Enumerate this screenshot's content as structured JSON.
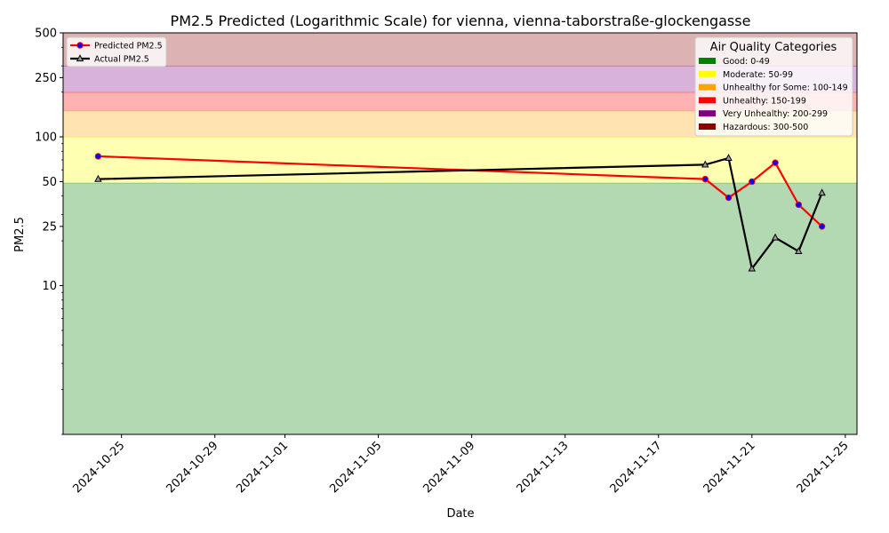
{
  "chart_data": {
    "type": "line",
    "title": "PM2.5 Predicted (Logarithmic Scale) for vienna, vienna-taborstraße-glockengasse",
    "xlabel": "Date",
    "ylabel": "PM2.5",
    "y_scale": "log",
    "ylim": [
      1,
      500
    ],
    "xlim": [
      "2024-10-22T12:00",
      "2024-11-25T12:00"
    ],
    "x_ticks": [
      "2024-10-25",
      "2024-10-29",
      "2024-11-01",
      "2024-11-05",
      "2024-11-09",
      "2024-11-13",
      "2024-11-17",
      "2024-11-21",
      "2024-11-25"
    ],
    "y_ticks": [
      10,
      25,
      50,
      100,
      250,
      500
    ],
    "grid": false,
    "series": [
      {
        "name": "Predicted PM2.5",
        "color": "#ff0000",
        "marker_color": "#0000ff",
        "marker": "circle",
        "x": [
          "2024-10-24",
          "2024-11-19",
          "2024-11-20",
          "2024-11-21",
          "2024-11-22",
          "2024-11-23",
          "2024-11-24"
        ],
        "values": [
          74,
          52,
          39,
          50,
          67,
          35,
          25
        ]
      },
      {
        "name": "Actual PM2.5",
        "color": "#000000",
        "marker_color": "#000000",
        "marker": "triangle",
        "x": [
          "2024-10-24",
          "2024-11-19",
          "2024-11-20",
          "2024-11-21",
          "2024-11-22",
          "2024-11-23",
          "2024-11-24"
        ],
        "values": [
          52,
          65,
          72,
          13,
          21,
          17,
          42
        ]
      }
    ],
    "bands": [
      {
        "label": "Good: 0-49",
        "from": 0,
        "to": 49,
        "color": "#008000"
      },
      {
        "label": "Moderate: 50-99",
        "from": 49,
        "to": 99,
        "color": "#ffff00"
      },
      {
        "label": "Unhealthy for Some: 100-149",
        "from": 99,
        "to": 149,
        "color": "#ffa500"
      },
      {
        "label": "Unhealthy: 150-199",
        "from": 149,
        "to": 199,
        "color": "#ff0000"
      },
      {
        "label": "Very Unhealthy: 200-299",
        "from": 199,
        "to": 299,
        "color": "#800080"
      },
      {
        "label": "Hazardous: 300-500",
        "from": 299,
        "to": 500,
        "color": "#8b0000"
      }
    ],
    "legend_placement": "upper-left",
    "category_legend": {
      "title": "Air Quality Categories",
      "placement": "upper-right"
    }
  }
}
